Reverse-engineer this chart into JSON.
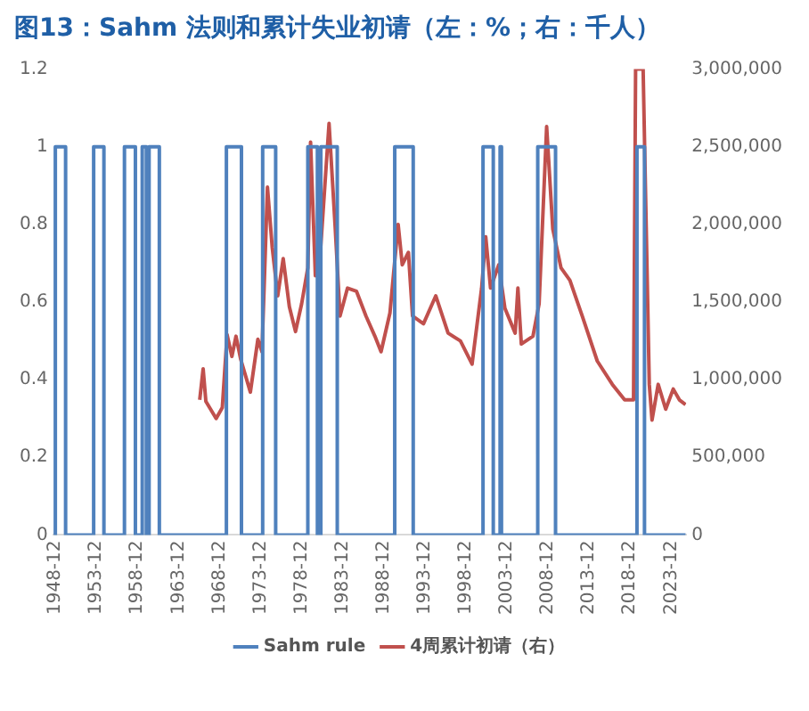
{
  "chart_data": {
    "type": "line",
    "title": "图13：Sahm 法则和累计失业初请（左：%；右：千人）",
    "xlim": [
      "1948-09",
      "2025-10"
    ],
    "xticks": [
      "1948-12",
      "1953-12",
      "1958-12",
      "1963-12",
      "1968-12",
      "1973-12",
      "1978-12",
      "1983-12",
      "1988-12",
      "1993-12",
      "1998-12",
      "2003-12",
      "2008-12",
      "2013-12",
      "2018-12",
      "2023-12"
    ],
    "ylim": [
      0,
      1.2
    ],
    "yticks": [
      0,
      0.2,
      0.4,
      0.6,
      0.8,
      1,
      1.2
    ],
    "y2lim": [
      0,
      3000000
    ],
    "y2ticks": [
      0,
      {
        "value": 500000,
        "label": "500,000"
      },
      {
        "value": 1000000,
        "label": "1,000,000"
      },
      {
        "value": 1500000,
        "label": "1,500,000"
      },
      {
        "value": 2000000,
        "label": "2,000,000"
      },
      {
        "value": 2500000,
        "label": "2,500,000"
      },
      {
        "value": 3000000,
        "label": "3,000,000"
      }
    ],
    "grid": false,
    "legend": "bottom",
    "marker": "none",
    "series": [
      {
        "name": "Sahm rule",
        "type": "step",
        "color": "#4f81bd",
        "x": [
          "1948-10",
          "1948-12",
          "1950-03",
          "1953-08",
          "1954-11",
          "1957-05",
          "1958-09",
          "1959-07",
          "1960-01",
          "1960-05",
          "1961-08",
          "1969-10",
          "1971-08",
          "1974-03",
          "1975-10",
          "1979-09",
          "1980-11",
          "1981-04",
          "1983-04",
          "1990-04",
          "1992-07",
          "2001-01",
          "2002-04",
          "2003-02",
          "2003-04",
          "2007-09",
          "2009-11",
          "2019-10",
          "2020-09",
          "2025-09"
        ],
        "values": [
          0,
          1,
          0,
          1,
          0,
          1,
          0,
          1,
          0,
          1,
          0,
          1,
          0,
          1,
          0,
          1,
          0,
          1,
          0,
          1,
          0,
          1,
          0,
          1,
          0,
          1,
          0,
          1,
          0,
          0
        ]
      },
      {
        "name": "4周累计初请（右）",
        "axis": "y2",
        "color": "#c0504d",
        "x": [
          "1966-07",
          "1966-12",
          "1967-04",
          "1968-07",
          "1969-04",
          "1969-11",
          "1970-06",
          "1970-12",
          "1971-07",
          "1972-09",
          "1973-08",
          "1974-02",
          "1974-10",
          "1975-05",
          "1976-01",
          "1976-09",
          "1977-06",
          "1978-03",
          "1978-12",
          "1979-09",
          "1980-01",
          "1980-08",
          "1981-03",
          "1982-04",
          "1983-01",
          "1983-08",
          "1984-07",
          "1985-08",
          "1986-10",
          "1987-11",
          "1988-08",
          "1989-09",
          "1990-09",
          "1991-03",
          "1991-12",
          "1992-06",
          "1993-10",
          "1995-04",
          "1996-10",
          "1998-04",
          "1999-09",
          "2000-11",
          "2001-05",
          "2001-12",
          "2002-12",
          "2003-09",
          "2004-12",
          "2005-04",
          "2005-09",
          "2007-02",
          "2007-11",
          "2008-10",
          "2009-07",
          "2010-07",
          "2011-08",
          "2013-02",
          "2014-12",
          "2016-10",
          "2018-04",
          "2019-05",
          "2019-08",
          "2020-07",
          "2021-04",
          "2021-08",
          "2022-05",
          "2023-04",
          "2024-03",
          "2024-12",
          "2025-09"
        ],
        "values": [
          870000,
          1070000,
          860000,
          750000,
          820000,
          1290000,
          1150000,
          1280000,
          1130000,
          920000,
          1260000,
          1180000,
          2240000,
          1850000,
          1540000,
          1780000,
          1470000,
          1310000,
          1490000,
          1720000,
          2530000,
          1670000,
          1800000,
          2650000,
          1980000,
          1410000,
          1590000,
          1570000,
          1410000,
          1280000,
          1180000,
          1430000,
          2000000,
          1740000,
          1820000,
          1410000,
          1360000,
          1540000,
          1300000,
          1250000,
          1100000,
          1590000,
          1920000,
          1590000,
          1740000,
          1460000,
          1300000,
          1590000,
          1230000,
          1280000,
          1490000,
          2630000,
          1970000,
          1720000,
          1640000,
          1410000,
          1120000,
          970000,
          870000,
          870000,
          3000000,
          3000000,
          970000,
          740000,
          970000,
          810000,
          940000,
          870000,
          840000
        ]
      }
    ]
  }
}
